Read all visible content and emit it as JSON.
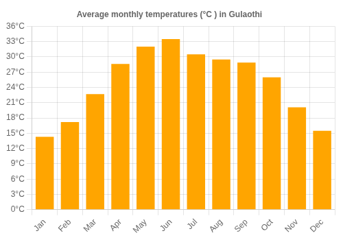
{
  "chart_data": {
    "type": "bar",
    "title": "Average monthly temperatures (°C ) in Gulaothi",
    "categories": [
      "Jan",
      "Feb",
      "Mar",
      "Apr",
      "May",
      "Jun",
      "Jul",
      "Aug",
      "Sep",
      "Oct",
      "Nov",
      "Dec"
    ],
    "values": [
      14.3,
      17.2,
      22.7,
      28.6,
      32.0,
      33.5,
      30.5,
      29.5,
      28.9,
      26.0,
      20.1,
      15.5
    ],
    "color": "#FFA500",
    "ylim": [
      0,
      36
    ],
    "yticks": [
      {
        "value": 0,
        "label": "0°C"
      },
      {
        "value": 3,
        "label": "3°C"
      },
      {
        "value": 6,
        "label": "6°C"
      },
      {
        "value": 9,
        "label": "9°C"
      },
      {
        "value": 12,
        "label": "12°C"
      },
      {
        "value": 15,
        "label": "15°C"
      },
      {
        "value": 18,
        "label": "18°C"
      },
      {
        "value": 21,
        "label": "21°C"
      },
      {
        "value": 24,
        "label": "24°C"
      },
      {
        "value": 27,
        "label": "27°C"
      },
      {
        "value": 30,
        "label": "30°C"
      },
      {
        "value": 33,
        "label": "33°C"
      },
      {
        "value": 36,
        "label": "36°C"
      }
    ],
    "grid": true
  }
}
